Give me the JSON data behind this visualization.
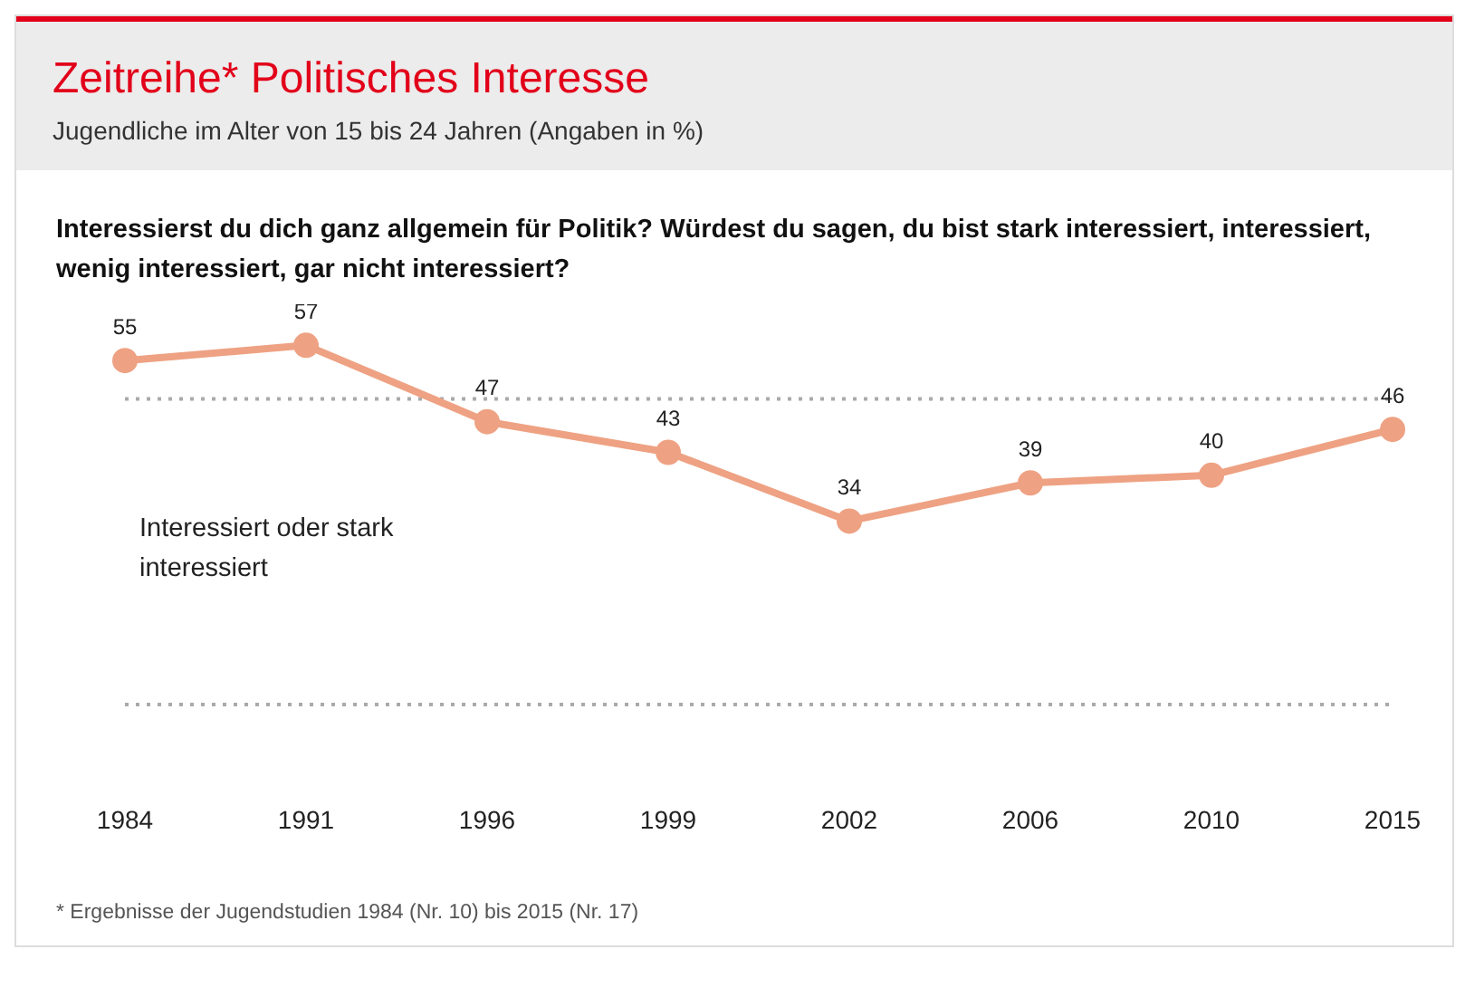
{
  "chart_data": {
    "type": "line",
    "title": "Zeitreihe* Politisches Interesse",
    "subtitle": "Jugendliche im Alter von 15 bis 24 Jahren (Angaben in %)",
    "categories": [
      "1984",
      "1991",
      "1996",
      "1999",
      "2002",
      "2006",
      "2010",
      "2015"
    ],
    "series": [
      {
        "name": "Interessiert oder stark interessiert",
        "color": "#eea283",
        "values": [
          55,
          57,
          47,
          43,
          34,
          39,
          40,
          46
        ]
      }
    ],
    "ref_lines": [
      {
        "axis": "y",
        "value": 50,
        "color": "#aaaaaa",
        "line_style": "dotted"
      },
      {
        "axis": "y",
        "value": 10,
        "color": "#aaaaaa",
        "line_style": "dotted"
      }
    ],
    "tick_labels": "x",
    "marker": "circle",
    "line_style": "solid",
    "data_labels": true,
    "legend": false,
    "annotations": [
      "Interessierst du dich ganz allgemein für Politik? Würdest du sagen, du bist stark interessiert, interessiert, wenig interessiert, gar nicht interessiert?",
      "* Ergebnisse der Jugendstudien 1984 (Nr. 10) bis 2015 (Nr. 17)"
    ]
  }
}
